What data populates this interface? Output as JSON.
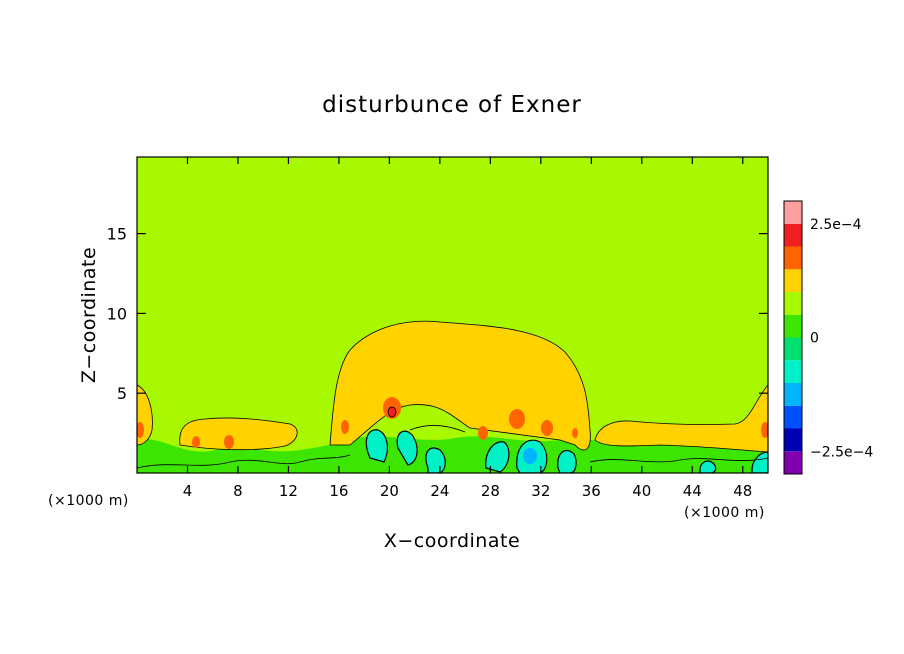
{
  "chart_data": {
    "type": "heatmap",
    "title": "disturbunce of Exner",
    "xlabel": "X−coordinate",
    "ylabel": "Z−coordinate",
    "x_unit_left": "(×1000 m)",
    "x_unit_right": "(×1000 m)",
    "xlim": [
      0,
      50
    ],
    "ylim": [
      0,
      19.8
    ],
    "x_ticks": [
      4,
      8,
      12,
      16,
      20,
      24,
      28,
      32,
      36,
      40,
      44,
      48
    ],
    "x_tick_labels": [
      "4",
      "8",
      "12",
      "16",
      "20",
      "24",
      "28",
      "32",
      "36",
      "40",
      "44",
      "48"
    ],
    "y_ticks": [
      5,
      10,
      15
    ],
    "y_tick_labels": [
      "5",
      "10",
      "15"
    ],
    "colorbar": {
      "range": [
        -0.0003,
        0.0003
      ],
      "levels": 12,
      "colors": [
        "#8000b0",
        "#0000b4",
        "#0050ff",
        "#00b4ff",
        "#00f0c8",
        "#00e070",
        "#3ce600",
        "#a8f800",
        "#ffd200",
        "#ff6400",
        "#f02020",
        "#ffa0a0"
      ],
      "labels": [
        {
          "value": 0.00025,
          "text": "2.5e−4"
        },
        {
          "value": 0,
          "text": "0"
        },
        {
          "value": -0.00025,
          "text": "−2.5e−4"
        }
      ]
    },
    "background_value": 5e-05,
    "features": [
      {
        "name": "yellow-dome",
        "x": [
          13,
          37
        ],
        "z": [
          3,
          9.8
        ],
        "level": "positive-1"
      },
      {
        "name": "orange-spot",
        "x": 20.3,
        "z": 4,
        "level": "positive-2"
      },
      {
        "name": "orange-spot",
        "x": 30.3,
        "z": 3.4,
        "level": "positive-2"
      },
      {
        "name": "orange-spot",
        "x": 32.5,
        "z": 2.9,
        "level": "positive-2"
      },
      {
        "name": "cyan-core",
        "x": 31.2,
        "z": 1.2,
        "level": "negative-2"
      }
    ]
  }
}
